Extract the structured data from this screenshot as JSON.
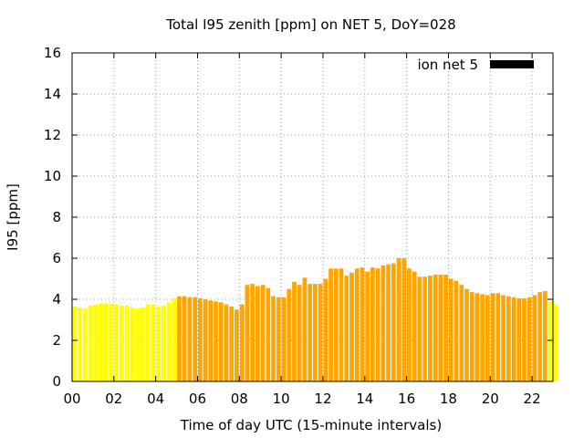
{
  "chart_data": {
    "type": "bar",
    "title": "Total I95 zenith [ppm] on NET 5, DoY=028",
    "xlabel": "Time of day UTC (15-minute intervals)",
    "ylabel": "I95 [ppm]",
    "xlim": [
      0,
      23
    ],
    "ylim": [
      0,
      16
    ],
    "x_ticks": [
      "00",
      "02",
      "04",
      "06",
      "08",
      "10",
      "12",
      "14",
      "16",
      "18",
      "20",
      "22"
    ],
    "y_ticks": [
      "0",
      "2",
      "4",
      "6",
      "8",
      "10",
      "12",
      "14",
      "16"
    ],
    "grid": true,
    "legend": {
      "label": "ion net 5",
      "color": "#000000",
      "placement": "top-right"
    },
    "interval_hours": 0.25,
    "colors": {
      "low": "#ffff00",
      "elevated": "#ffa500",
      "legend": "#000000"
    },
    "values": [
      3.65,
      3.6,
      3.55,
      3.7,
      3.75,
      3.8,
      3.8,
      3.8,
      3.75,
      3.7,
      3.7,
      3.6,
      3.55,
      3.6,
      3.75,
      3.75,
      3.65,
      3.7,
      3.85,
      4.05,
      4.15,
      4.15,
      4.1,
      4.1,
      4.05,
      4.0,
      3.95,
      3.9,
      3.85,
      3.75,
      3.65,
      3.5,
      3.75,
      4.7,
      4.75,
      4.65,
      4.7,
      4.55,
      4.15,
      4.1,
      4.1,
      4.5,
      4.85,
      4.7,
      5.05,
      4.75,
      4.75,
      4.75,
      5.0,
      5.5,
      5.5,
      5.5,
      5.15,
      5.3,
      5.5,
      5.55,
      5.35,
      5.55,
      5.5,
      5.65,
      5.7,
      5.75,
      6.0,
      6.0,
      5.5,
      5.35,
      5.1,
      5.1,
      5.15,
      5.2,
      5.2,
      5.2,
      5.0,
      4.9,
      4.7,
      4.5,
      4.35,
      4.3,
      4.25,
      4.2,
      4.3,
      4.3,
      4.2,
      4.15,
      4.1,
      4.05,
      4.05,
      4.1,
      4.2,
      4.35,
      4.4,
      3.9,
      3.75
    ],
    "categories": [
      "low",
      "low",
      "low",
      "low",
      "low",
      "low",
      "low",
      "low",
      "low",
      "low",
      "low",
      "low",
      "low",
      "low",
      "low",
      "low",
      "low",
      "low",
      "low",
      "low",
      "elevated",
      "elevated",
      "elevated",
      "elevated",
      "elevated",
      "elevated",
      "elevated",
      "elevated",
      "elevated",
      "elevated",
      "elevated",
      "elevated",
      "elevated",
      "elevated",
      "elevated",
      "elevated",
      "elevated",
      "elevated",
      "elevated",
      "elevated",
      "elevated",
      "elevated",
      "elevated",
      "elevated",
      "elevated",
      "elevated",
      "elevated",
      "elevated",
      "elevated",
      "elevated",
      "elevated",
      "elevated",
      "elevated",
      "elevated",
      "elevated",
      "elevated",
      "elevated",
      "elevated",
      "elevated",
      "elevated",
      "elevated",
      "elevated",
      "elevated",
      "elevated",
      "elevated",
      "elevated",
      "elevated",
      "elevated",
      "elevated",
      "elevated",
      "elevated",
      "elevated",
      "elevated",
      "elevated",
      "elevated",
      "elevated",
      "elevated",
      "elevated",
      "elevated",
      "elevated",
      "elevated",
      "elevated",
      "elevated",
      "elevated",
      "elevated",
      "elevated",
      "elevated",
      "elevated",
      "elevated",
      "elevated",
      "elevated",
      "low",
      "low"
    ]
  }
}
